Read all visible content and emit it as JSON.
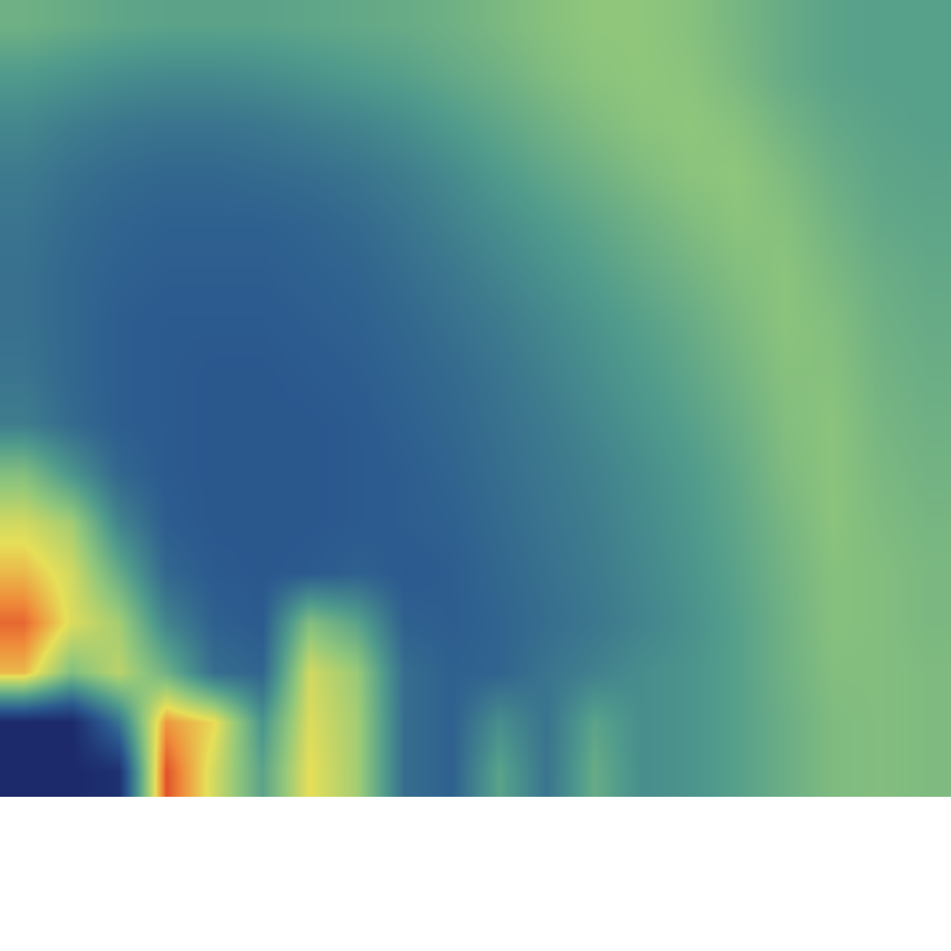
{
  "chart_data": {
    "type": "heatmap",
    "tick_labels": false,
    "zlim": [
      0,
      1
    ],
    "z": [
      [
        0.02,
        0.02,
        0.05,
        0.95,
        0.7,
        0.45,
        0.74,
        0.62,
        0.28,
        0.24,
        0.45,
        0.3,
        0.48,
        0.38,
        0.4,
        0.44,
        0.49,
        0.54,
        0.55,
        0.54
      ],
      [
        0.02,
        0.02,
        0.3,
        0.85,
        0.75,
        0.4,
        0.72,
        0.62,
        0.28,
        0.24,
        0.38,
        0.3,
        0.45,
        0.38,
        0.4,
        0.44,
        0.49,
        0.54,
        0.55,
        0.54
      ],
      [
        0.8,
        0.55,
        0.66,
        0.5,
        0.28,
        0.25,
        0.7,
        0.6,
        0.28,
        0.24,
        0.25,
        0.3,
        0.34,
        0.38,
        0.4,
        0.44,
        0.5,
        0.55,
        0.55,
        0.54
      ],
      [
        0.92,
        0.72,
        0.62,
        0.35,
        0.24,
        0.22,
        0.55,
        0.45,
        0.24,
        0.23,
        0.25,
        0.28,
        0.31,
        0.35,
        0.39,
        0.44,
        0.5,
        0.56,
        0.55,
        0.53
      ],
      [
        0.8,
        0.7,
        0.48,
        0.26,
        0.22,
        0.21,
        0.22,
        0.24,
        0.22,
        0.23,
        0.26,
        0.29,
        0.32,
        0.36,
        0.4,
        0.45,
        0.51,
        0.56,
        0.55,
        0.53
      ],
      [
        0.7,
        0.62,
        0.35,
        0.23,
        0.21,
        0.21,
        0.21,
        0.22,
        0.23,
        0.24,
        0.27,
        0.3,
        0.33,
        0.37,
        0.41,
        0.46,
        0.52,
        0.57,
        0.54,
        0.52
      ],
      [
        0.55,
        0.4,
        0.26,
        0.22,
        0.21,
        0.21,
        0.21,
        0.22,
        0.23,
        0.25,
        0.28,
        0.31,
        0.34,
        0.38,
        0.42,
        0.47,
        0.54,
        0.57,
        0.53,
        0.51
      ],
      [
        0.33,
        0.27,
        0.23,
        0.22,
        0.21,
        0.21,
        0.21,
        0.22,
        0.24,
        0.26,
        0.29,
        0.32,
        0.36,
        0.4,
        0.44,
        0.49,
        0.55,
        0.57,
        0.52,
        0.5
      ],
      [
        0.3,
        0.26,
        0.23,
        0.22,
        0.21,
        0.21,
        0.22,
        0.23,
        0.25,
        0.27,
        0.3,
        0.34,
        0.38,
        0.42,
        0.46,
        0.51,
        0.56,
        0.56,
        0.51,
        0.49
      ],
      [
        0.29,
        0.26,
        0.23,
        0.22,
        0.22,
        0.22,
        0.23,
        0.24,
        0.26,
        0.29,
        0.32,
        0.36,
        0.4,
        0.44,
        0.48,
        0.53,
        0.57,
        0.55,
        0.5,
        0.48
      ],
      [
        0.29,
        0.26,
        0.24,
        0.23,
        0.23,
        0.23,
        0.24,
        0.25,
        0.28,
        0.31,
        0.35,
        0.39,
        0.43,
        0.47,
        0.51,
        0.55,
        0.57,
        0.53,
        0.49,
        0.47
      ],
      [
        0.3,
        0.27,
        0.25,
        0.24,
        0.24,
        0.24,
        0.25,
        0.27,
        0.3,
        0.34,
        0.38,
        0.42,
        0.46,
        0.5,
        0.54,
        0.57,
        0.56,
        0.51,
        0.47,
        0.46
      ],
      [
        0.32,
        0.29,
        0.27,
        0.26,
        0.26,
        0.27,
        0.28,
        0.3,
        0.33,
        0.37,
        0.42,
        0.46,
        0.5,
        0.54,
        0.57,
        0.58,
        0.54,
        0.49,
        0.46,
        0.45
      ],
      [
        0.36,
        0.33,
        0.31,
        0.3,
        0.3,
        0.31,
        0.33,
        0.35,
        0.38,
        0.42,
        0.46,
        0.5,
        0.54,
        0.57,
        0.58,
        0.56,
        0.51,
        0.47,
        0.45,
        0.44
      ],
      [
        0.42,
        0.4,
        0.38,
        0.37,
        0.37,
        0.38,
        0.4,
        0.42,
        0.44,
        0.47,
        0.5,
        0.54,
        0.57,
        0.58,
        0.57,
        0.53,
        0.48,
        0.45,
        0.44,
        0.44
      ],
      [
        0.5,
        0.48,
        0.46,
        0.45,
        0.45,
        0.45,
        0.46,
        0.47,
        0.48,
        0.5,
        0.53,
        0.56,
        0.58,
        0.58,
        0.56,
        0.52,
        0.48,
        0.45,
        0.44,
        0.44
      ]
    ]
  }
}
